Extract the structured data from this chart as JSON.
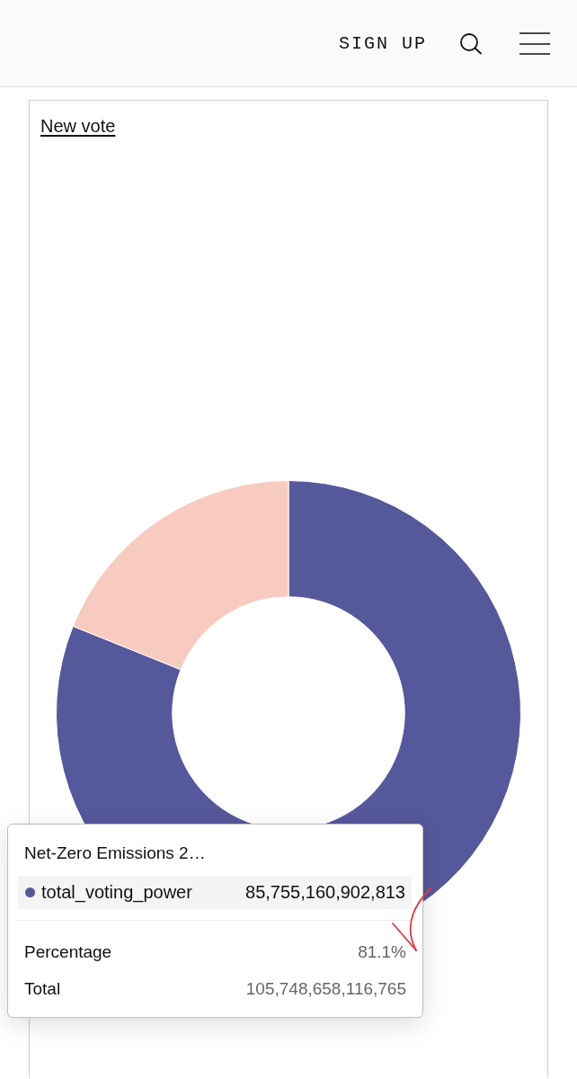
{
  "chart_data": {
    "type": "donut",
    "title": "New vote",
    "categories": [
      "Net-Zero Emissions 2…",
      null
    ],
    "series": [
      {
        "name": "total_voting_power",
        "colors": [
          "#55589b",
          "#f8cbc0"
        ],
        "values": [
          85755160902813,
          19993497213952
        ],
        "value_labels": [
          "85,755,160,902,813",
          null
        ]
      }
    ],
    "annotations": [
      "SIGN UP",
      "Percentage",
      "81.1%",
      "Total",
      "105,748,658,116,765"
    ]
  }
}
